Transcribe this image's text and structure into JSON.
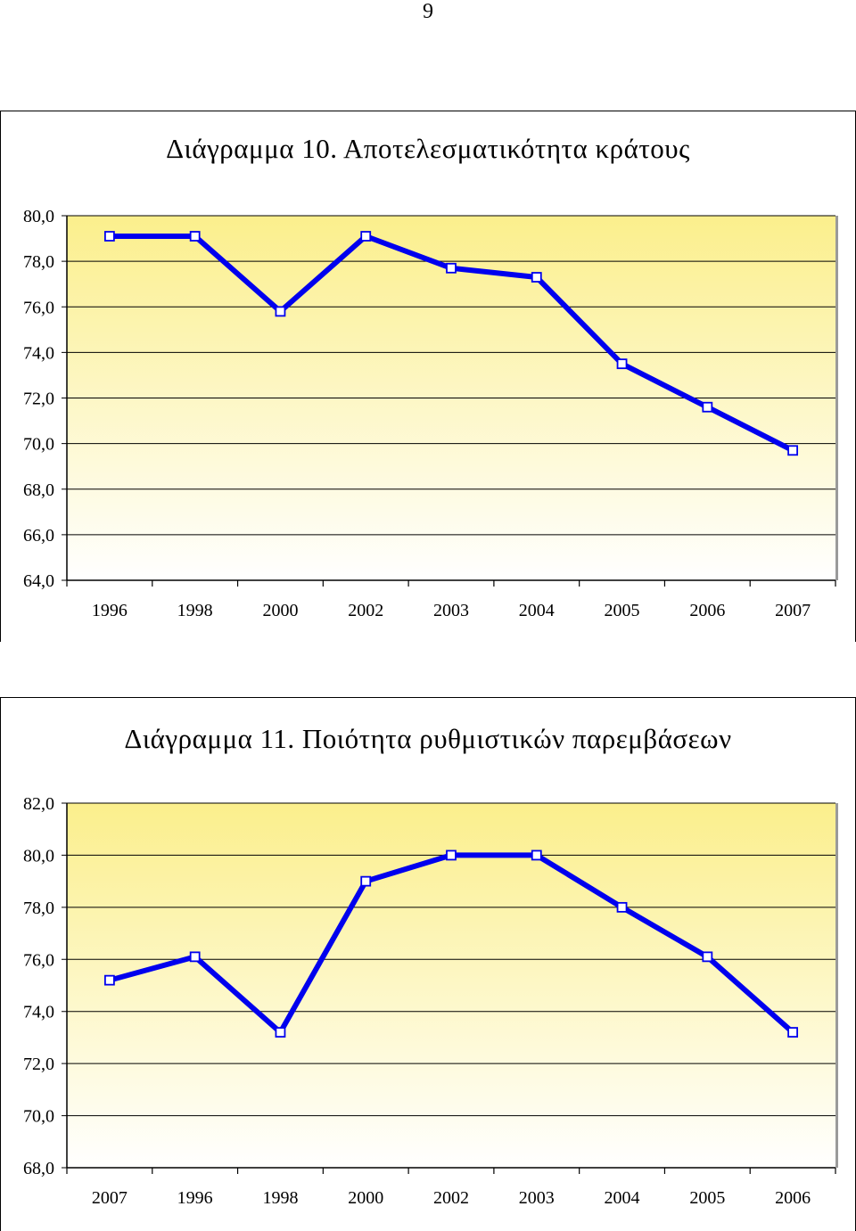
{
  "page_number": "9",
  "colors": {
    "line": "#0000ee",
    "plot_top": "#fbef8c",
    "plot_bottom": "#ffffff",
    "grid": "#000000"
  },
  "chart_data": [
    {
      "type": "line",
      "title": "Διάγραμμα 10. Αποτελεσματικότητα κράτους",
      "categories": [
        "1996",
        "1998",
        "2000",
        "2002",
        "2003",
        "2004",
        "2005",
        "2006",
        "2007"
      ],
      "series": [
        {
          "values": [
            79.1,
            79.1,
            75.8,
            79.1,
            77.7,
            77.3,
            73.5,
            71.6,
            69.7
          ]
        }
      ],
      "ylim": [
        64.0,
        80.0
      ],
      "yticks": [
        "64,0",
        "66,0",
        "68,0",
        "70,0",
        "72,0",
        "74,0",
        "76,0",
        "78,0",
        "80,0"
      ],
      "xlabel": "",
      "ylabel": "",
      "grid": true,
      "legend": "none"
    },
    {
      "type": "line",
      "title": "Διάγραμμα 11. Ποιότητα ρυθμιστικών παρεμβάσεων",
      "categories": [
        "2007",
        "1996",
        "1998",
        "2000",
        "2002",
        "2003",
        "2004",
        "2005",
        "2006"
      ],
      "series": [
        {
          "values": [
            75.2,
            76.1,
            73.2,
            79.0,
            80.0,
            80.0,
            78.0,
            76.1,
            73.2
          ]
        }
      ],
      "ylim": [
        68.0,
        82.0
      ],
      "yticks": [
        "68,0",
        "70,0",
        "72,0",
        "74,0",
        "76,0",
        "78,0",
        "80,0",
        "82,0"
      ],
      "xlabel": "",
      "ylabel": "",
      "grid": true,
      "legend": "none"
    }
  ]
}
